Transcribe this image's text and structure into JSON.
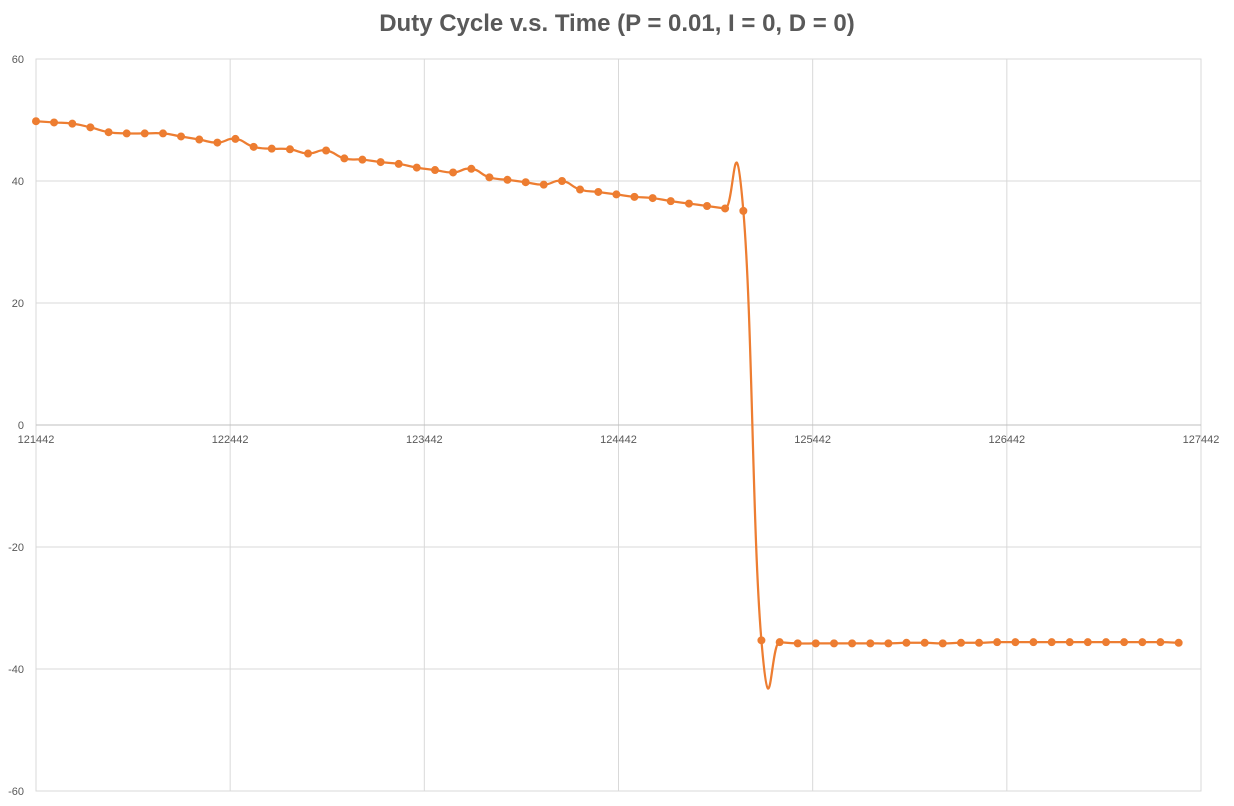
{
  "chart_data": {
    "type": "line",
    "title": "Duty Cycle v.s. Time (P = 0.01, I = 0, D = 0)",
    "xlabel": "",
    "ylabel": "",
    "xlim": [
      121442,
      127442
    ],
    "ylim": [
      -60,
      60
    ],
    "x_ticks": [
      "121442",
      "122442",
      "123442",
      "124442",
      "125442",
      "126442",
      "127442"
    ],
    "y_ticks": [
      "60",
      "40",
      "20",
      "0",
      "-20",
      "-40",
      "-60"
    ],
    "grid": true,
    "legend": "none",
    "colors": {
      "series": "#ED7D31",
      "grid": "#D9D9D9",
      "axis": "#BFBFBF",
      "text": "#595959"
    },
    "series": [
      {
        "x": [
          121442,
          121535,
          121629,
          121722,
          121816,
          121909,
          122002,
          122096,
          122189,
          122283,
          122376,
          122469,
          122563,
          122656,
          122750,
          122843,
          122936,
          123030,
          123123,
          123217,
          123310,
          123403,
          123497,
          123590,
          123684,
          123777,
          123870,
          123964,
          124057,
          124151,
          124244,
          124338,
          124431,
          124524,
          124618,
          124711,
          124805,
          124898,
          124991,
          125085,
          125178,
          125272,
          125365,
          125458,
          125552,
          125645,
          125739,
          125832,
          125925,
          126019,
          126112,
          126206,
          126299,
          126392,
          126486,
          126579,
          126673,
          126766,
          126859,
          126953,
          127046,
          127140,
          127233,
          127327
        ],
        "y": [
          49.8,
          49.6,
          49.4,
          48.8,
          48.0,
          47.8,
          47.8,
          47.8,
          47.3,
          46.8,
          46.3,
          46.9,
          45.6,
          45.3,
          45.2,
          44.5,
          45.0,
          43.7,
          43.5,
          43.1,
          42.8,
          42.2,
          41.8,
          41.4,
          42.0,
          40.6,
          40.2,
          39.8,
          39.4,
          40.0,
          38.6,
          38.2,
          37.8,
          37.4,
          37.2,
          36.7,
          36.3,
          35.9,
          35.5,
          35.1,
          -35.3,
          -35.6,
          -35.8,
          -35.8,
          -35.8,
          -35.8,
          -35.8,
          -35.8,
          -35.7,
          -35.7,
          -35.8,
          -35.7,
          -35.7,
          -35.6,
          -35.6,
          -35.6,
          -35.6,
          -35.6,
          -35.6,
          -35.6,
          -35.6,
          -35.6,
          -35.6,
          -35.7
        ]
      }
    ]
  }
}
